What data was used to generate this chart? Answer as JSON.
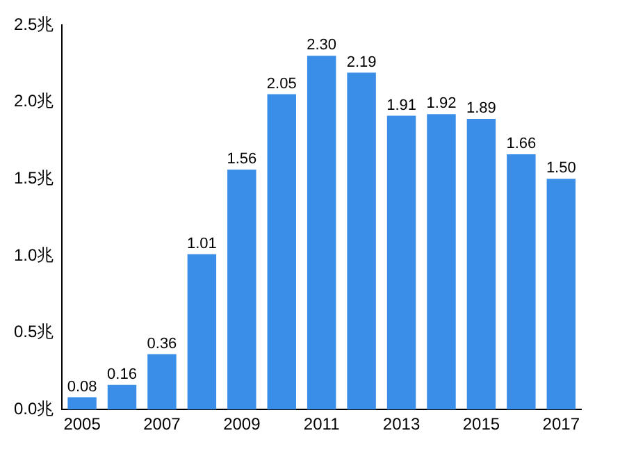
{
  "chart_data": {
    "type": "bar",
    "categories": [
      "2005",
      null,
      "2007",
      null,
      "2009",
      null,
      "2011",
      null,
      "2013",
      null,
      "2015",
      null,
      "2017"
    ],
    "values": [
      0.08,
      0.16,
      0.36,
      1.01,
      1.56,
      2.05,
      2.3,
      2.19,
      1.91,
      1.92,
      1.89,
      1.66,
      1.5
    ],
    "value_labels": [
      "0.08",
      "0.16",
      "0.36",
      "1.01",
      "1.56",
      "2.05",
      "2.30",
      "2.19",
      "1.91",
      "1.92",
      "1.89",
      "1.66",
      "1.50"
    ],
    "color": "#3a8ee8",
    "ylim": [
      0,
      2.5
    ],
    "yticks": [
      {
        "value": 0,
        "label": "0.0兆"
      },
      {
        "value": 0.5,
        "label": "0.5兆"
      },
      {
        "value": 1,
        "label": "1.0兆"
      },
      {
        "value": 1.5,
        "label": "1.5兆"
      },
      {
        "value": 2,
        "label": "2.0兆"
      },
      {
        "value": 2.5,
        "label": "2.5兆"
      }
    ],
    "grid": false,
    "legend": false
  }
}
